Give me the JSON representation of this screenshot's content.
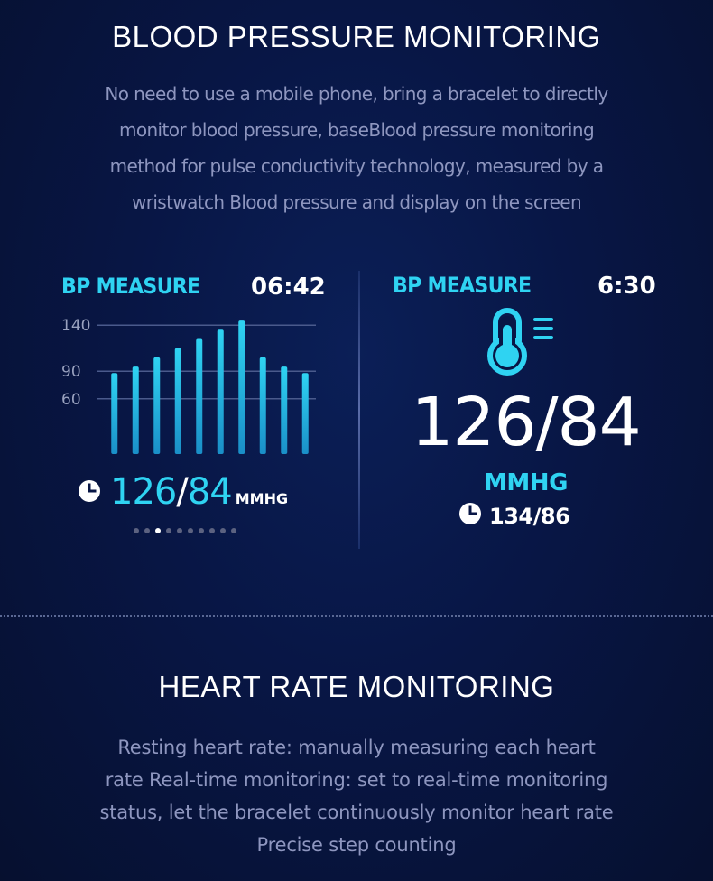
{
  "bp_section": {
    "title": "BLOOD PRESSURE MONITORING",
    "description_lines": [
      "No need to use a mobile phone, bring a bracelet to directly",
      "monitor blood pressure, baseBlood pressure monitoring",
      "method for pulse conductivity technology, measured by a",
      "wristwatch Blood pressure and display on the screen"
    ]
  },
  "left_screen": {
    "label": "BP MEASURE",
    "time": "06:42",
    "reading_sys": "126",
    "reading_sep": "/",
    "reading_dia": "84",
    "unit": "MMHG",
    "page_count": 10,
    "active_page": 3,
    "clock_icon": "clock-icon"
  },
  "chart_data": {
    "type": "bar",
    "ylim": [
      0,
      150
    ],
    "yticks": [
      60,
      90,
      140
    ],
    "ytick_labels": [
      "60",
      "90",
      "140"
    ],
    "values": [
      88,
      95,
      105,
      115,
      125,
      135,
      145,
      105,
      95,
      88
    ],
    "grid": true,
    "colors": {
      "bar_top": "#2fd3f2",
      "bar_bottom": "#1a8fc8"
    }
  },
  "right_screen": {
    "label": "BP MEASURE",
    "time": "6:30",
    "thermometer_icon": "thermometer-icon",
    "reading": "126/84",
    "unit": "MMHG",
    "previous_reading": "134/86",
    "clock_icon": "clock-icon"
  },
  "hr_section": {
    "title": "HEART RATE MONITORING",
    "description_lines": [
      "Resting heart rate: manually measuring each heart",
      "rate Real-time monitoring: set to real-time monitoring",
      "status, let the bracelet continuously monitor heart rate",
      "Precise step counting"
    ]
  },
  "colors": {
    "accent": "#2fd3f2",
    "background": "#081645",
    "description_text": "#8e96bf"
  }
}
